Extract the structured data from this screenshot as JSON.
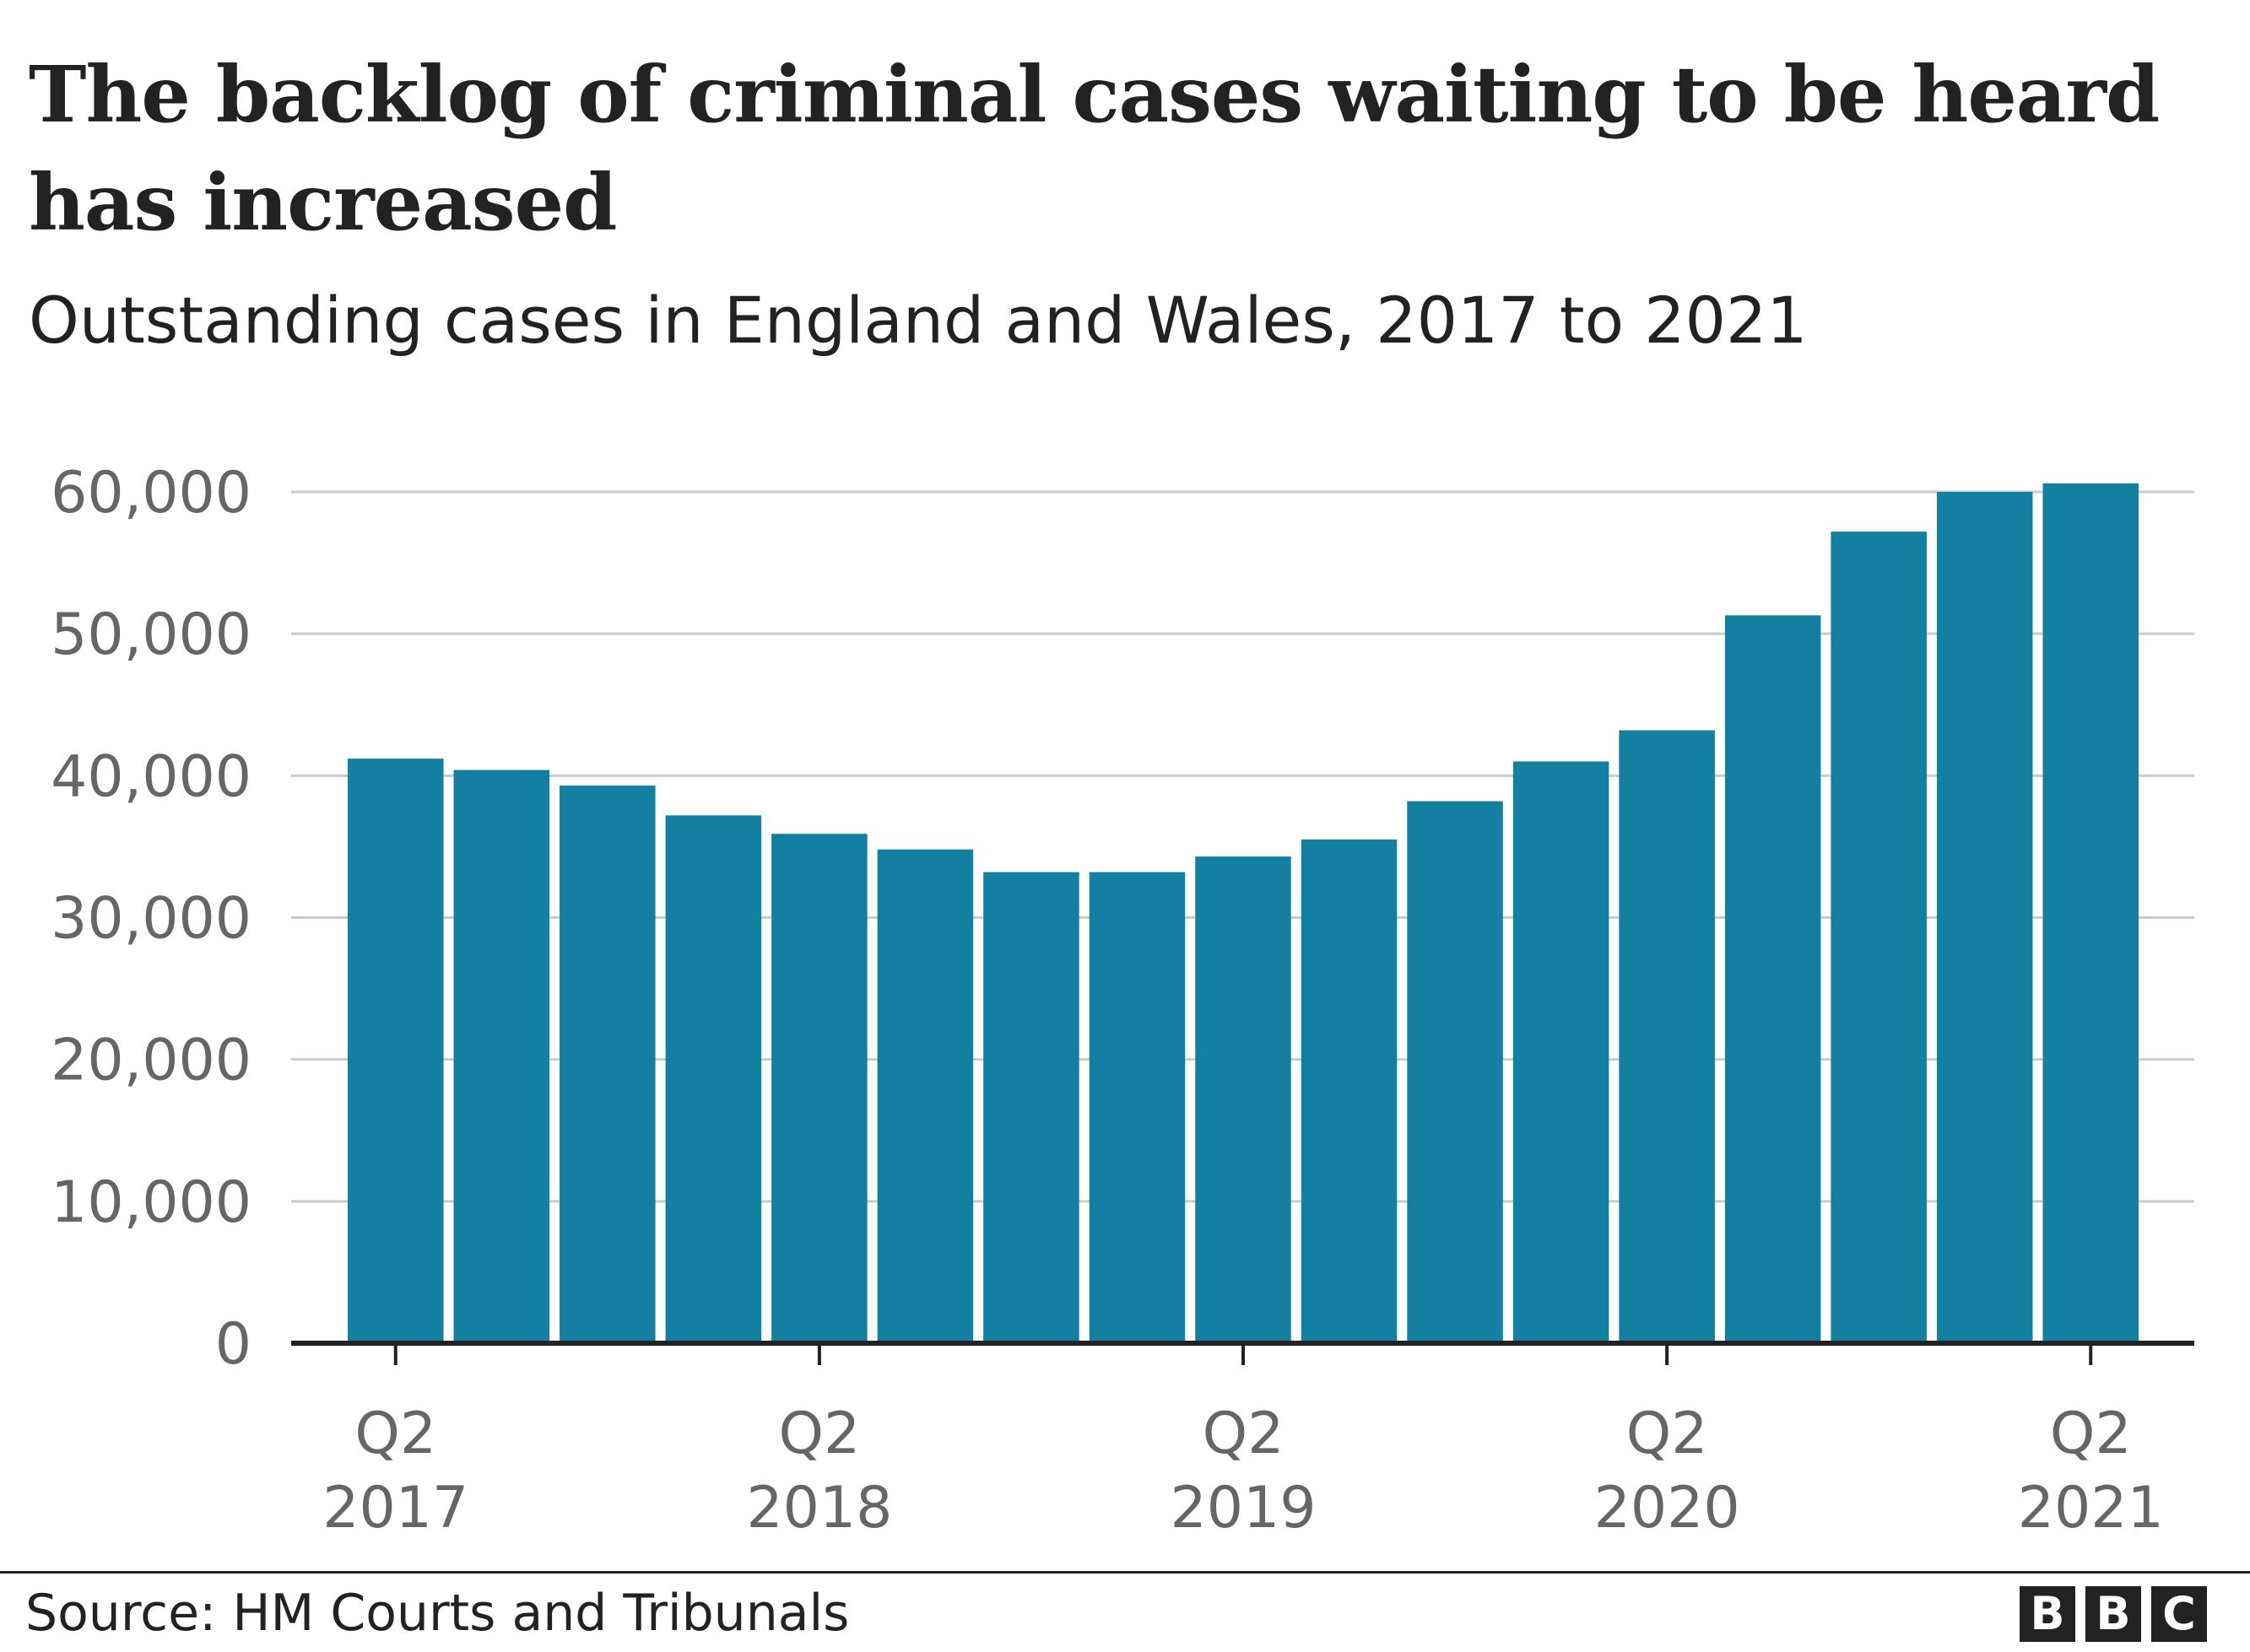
{
  "title": "The backlog of criminal cases waiting to be heard has increased",
  "subtitle": "Outstanding cases in England and Wales, 2017 to 2021",
  "source": "Source: HM Courts and Tribunals",
  "logo_letters": [
    "B",
    "B",
    "C"
  ],
  "colors": {
    "bar": "#1380a1",
    "grid": "#cbcbcb",
    "axis": "#222222",
    "tick_text": "#666666",
    "text": "#222222"
  },
  "chart_data": {
    "type": "bar",
    "title": "The backlog of criminal cases waiting to be heard has increased",
    "subtitle": "Outstanding cases in England and Wales, 2017 to 2021",
    "xlabel": "",
    "ylabel": "",
    "ylim": [
      0,
      60000
    ],
    "yticks": [
      0,
      10000,
      20000,
      30000,
      40000,
      50000,
      60000
    ],
    "ytick_labels": [
      "0",
      "10,000",
      "20,000",
      "30,000",
      "40,000",
      "50,000",
      "60,000"
    ],
    "grid": true,
    "legend": "none",
    "categories": [
      "Q2 2017",
      "Q3 2017",
      "Q4 2017",
      "Q1 2018",
      "Q2 2018",
      "Q3 2018",
      "Q4 2018",
      "Q1 2019",
      "Q2 2019",
      "Q3 2019",
      "Q4 2019",
      "Q1 2020",
      "Q2 2020",
      "Q3 2020",
      "Q4 2020",
      "Q1 2021",
      "Q2 2021"
    ],
    "values": [
      41200,
      40400,
      39300,
      37200,
      35900,
      34800,
      33200,
      33200,
      34300,
      35500,
      38200,
      41000,
      43200,
      51300,
      57200,
      60000,
      60600
    ],
    "xtick_labels": [
      {
        "category": "Q2 2017",
        "line1": "Q2",
        "line2": "2017"
      },
      {
        "category": "Q2 2018",
        "line1": "Q2",
        "line2": "2018"
      },
      {
        "category": "Q2 2019",
        "line1": "Q2",
        "line2": "2019"
      },
      {
        "category": "Q2 2020",
        "line1": "Q2",
        "line2": "2020"
      },
      {
        "category": "Q2 2021",
        "line1": "Q2",
        "line2": "2021"
      }
    ]
  }
}
